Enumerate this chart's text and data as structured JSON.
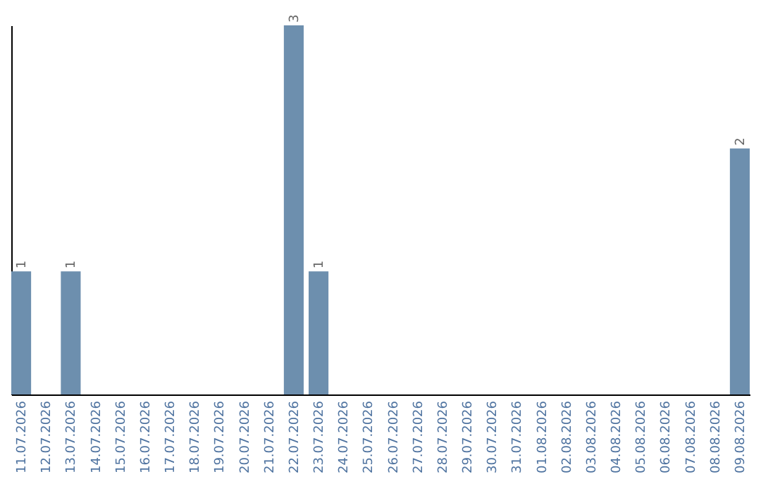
{
  "chart_data": {
    "type": "bar",
    "categories": [
      "11.07.2026",
      "12.07.2026",
      "13.07.2026",
      "14.07.2026",
      "15.07.2026",
      "16.07.2026",
      "17.07.2026",
      "18.07.2026",
      "19.07.2026",
      "20.07.2026",
      "21.07.2026",
      "22.07.2026",
      "23.07.2026",
      "24.07.2026",
      "25.07.2026",
      "26.07.2026",
      "27.07.2026",
      "28.07.2026",
      "29.07.2026",
      "30.07.2026",
      "31.07.2026",
      "01.08.2026",
      "02.08.2026",
      "03.08.2026",
      "04.08.2026",
      "05.08.2026",
      "06.08.2026",
      "07.08.2026",
      "08.08.2026",
      "09.08.2026"
    ],
    "values": [
      1,
      0,
      1,
      0,
      0,
      0,
      0,
      0,
      0,
      0,
      0,
      3,
      1,
      0,
      0,
      0,
      0,
      0,
      0,
      0,
      0,
      0,
      0,
      0,
      0,
      0,
      0,
      0,
      0,
      2
    ],
    "color": "#6d8fae",
    "ylim": [
      0,
      3
    ],
    "value_labels": [
      "1",
      null,
      "1",
      null,
      null,
      null,
      null,
      null,
      null,
      null,
      null,
      "3",
      "1",
      null,
      null,
      null,
      null,
      null,
      null,
      null,
      null,
      null,
      null,
      null,
      null,
      null,
      null,
      null,
      null,
      "2"
    ],
    "tick_labels": "x"
  }
}
